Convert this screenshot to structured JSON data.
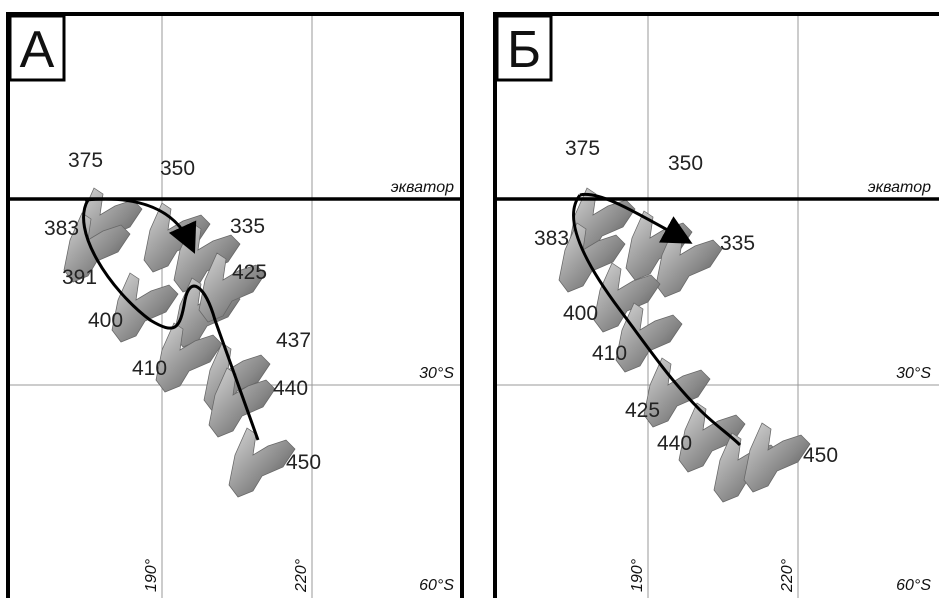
{
  "panels": [
    {
      "letter": "А",
      "equator": "экватор",
      "lat30": "30°S",
      "lat60": "60°S",
      "lon190": "190°",
      "lon220": "220°",
      "ages": [
        "375",
        "350",
        "383",
        "335",
        "391",
        "425",
        "400",
        "437",
        "410",
        "440",
        "450"
      ]
    },
    {
      "letter": "Б",
      "equator": "экватор",
      "lat30": "30°S",
      "lat60": "60°S",
      "lon190": "190°",
      "lon220": "220°",
      "ages": [
        "375",
        "350",
        "383",
        "335",
        "400",
        "410",
        "425",
        "440",
        "450"
      ]
    }
  ]
}
